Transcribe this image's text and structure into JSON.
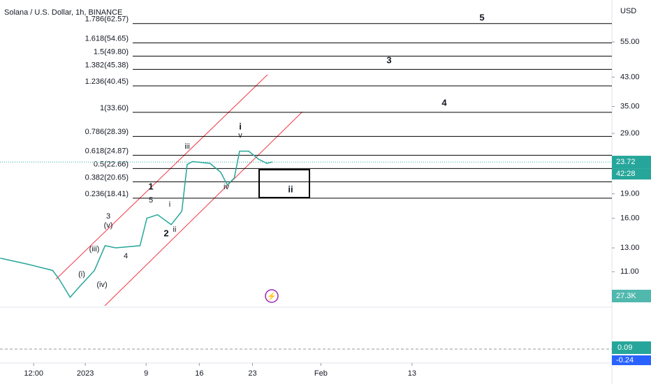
{
  "chart_data": {
    "type": "line",
    "title": "Solana / U.S. Dollar, 1h, BINANCE",
    "currency": "USD",
    "color": "#26a69a",
    "x": [
      -11.2,
      -7.6,
      -4.3,
      -3.4,
      -2.0,
      -0.6,
      1.2,
      2.6,
      4.0,
      7.2,
      8.1,
      9.5,
      11.3,
      12.7,
      13.4,
      14.1,
      16.4,
      17.8,
      18.7,
      19.6,
      20.3,
      21.5,
      22.8,
      23.9,
      24.6
    ],
    "values": [
      12.1,
      11.6,
      11.1,
      10.4,
      9.2,
      10.0,
      11.1,
      13.2,
      13.0,
      13.2,
      16.0,
      16.4,
      15.3,
      16.8,
      23.3,
      23.8,
      23.5,
      22.1,
      20.2,
      21.2,
      25.6,
      25.6,
      24.2,
      23.5,
      23.72
    ],
    "xlim": [
      -11.23,
      69.3
    ],
    "ylim": [
      8.58,
      73.8
    ],
    "log_scale": true,
    "xticks": [
      {
        "value": -6.8,
        "label": "12:00"
      },
      {
        "value": 0,
        "label": "2023"
      },
      {
        "value": 8,
        "label": "9"
      },
      {
        "value": 15,
        "label": "16"
      },
      {
        "value": 22,
        "label": "23"
      },
      {
        "value": 31,
        "label": "Feb"
      },
      {
        "value": 43,
        "label": "13"
      }
    ],
    "yticks": [
      {
        "value": 55,
        "label": "55.00"
      },
      {
        "value": 43,
        "label": "43.00"
      },
      {
        "value": 35,
        "label": "35.00"
      },
      {
        "value": 29,
        "label": "29.00"
      },
      {
        "value": 19,
        "label": "19.00"
      },
      {
        "value": 16,
        "label": "16.00"
      },
      {
        "value": 13,
        "label": "13.00"
      },
      {
        "value": 11,
        "label": "11.00"
      }
    ],
    "last_price": 23.72,
    "countdown": "42:28",
    "volume": {
      "value": 27300,
      "label": "27.3K"
    },
    "macd": 0.09,
    "signal": -0.24,
    "fib_levels": [
      {
        "label": "1.786(62.57)",
        "value": 62.57
      },
      {
        "label": "1.618(54.65)",
        "value": 54.65
      },
      {
        "label": "1.5(49.80)",
        "value": 49.8
      },
      {
        "label": "1.382(45.38)",
        "value": 45.38
      },
      {
        "label": "1.236(40.45)",
        "value": 40.45
      },
      {
        "label": "1(33.60)",
        "value": 33.6
      },
      {
        "label": "0.786(28.39)",
        "value": 28.39
      },
      {
        "label": "0.618(24.87)",
        "value": 24.87
      },
      {
        "label": "0.5(22.66)",
        "value": 22.66
      },
      {
        "label": "0.382(20.65)",
        "value": 20.65
      },
      {
        "label": "0.236(18.41)",
        "value": 18.41
      }
    ],
    "wave_labels": [
      "5",
      "3",
      "4",
      "i",
      "v",
      "iii",
      "1",
      "5",
      "i",
      "3",
      "(v)",
      "2",
      "ii",
      "(iii)",
      "4",
      "(i)",
      "(iv)",
      "iv",
      "ii"
    ]
  }
}
